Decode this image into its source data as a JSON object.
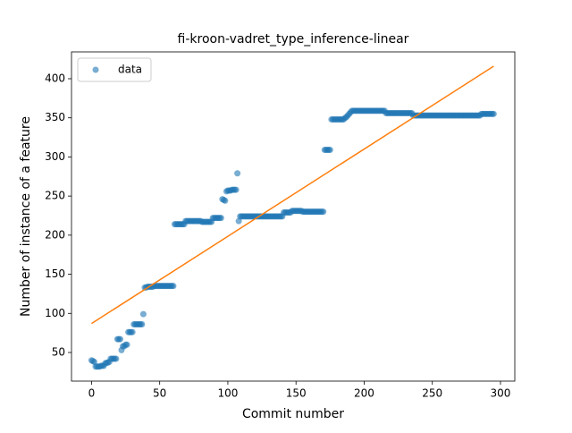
{
  "chart_data": {
    "type": "scatter",
    "title": "fi-kroon-vadret_type_inference-linear",
    "x_label": "Commit number",
    "y_label": "Number of instance of a feature",
    "xlim": [
      -14.7,
      310.5
    ],
    "ylim": [
      13.4,
      434.3
    ],
    "xticks": [
      0,
      50,
      100,
      150,
      200,
      250,
      300
    ],
    "yticks": [
      50,
      100,
      150,
      200,
      250,
      300,
      350,
      400
    ],
    "legend": "upper left",
    "series": [
      {
        "name": "data",
        "color": "#1f77b4",
        "kind": "points",
        "x": [
          0,
          1,
          2,
          3,
          4,
          5,
          6,
          7,
          8,
          9,
          10,
          11,
          12,
          13,
          14,
          15,
          16,
          17,
          18,
          19,
          20,
          21,
          22,
          23,
          24,
          25,
          26,
          27,
          28,
          29,
          30,
          31,
          32,
          33,
          34,
          35,
          36,
          37,
          38,
          39,
          40,
          41,
          42,
          43,
          44,
          45,
          46,
          47,
          48,
          49,
          50,
          51,
          52,
          53,
          54,
          55,
          56,
          57,
          58,
          59,
          60,
          61,
          62,
          63,
          64,
          65,
          66,
          67,
          68,
          69,
          70,
          71,
          72,
          73,
          74,
          75,
          76,
          77,
          78,
          79,
          80,
          81,
          82,
          83,
          84,
          85,
          86,
          87,
          88,
          89,
          90,
          91,
          92,
          93,
          94,
          95,
          96,
          97,
          98,
          99,
          100,
          101,
          102,
          103,
          104,
          105,
          106,
          107,
          108,
          109,
          110,
          111,
          112,
          113,
          114,
          115,
          116,
          117,
          118,
          119,
          120,
          121,
          122,
          123,
          124,
          125,
          126,
          127,
          128,
          129,
          130,
          131,
          132,
          133,
          134,
          135,
          136,
          137,
          138,
          139,
          140,
          141,
          142,
          143,
          144,
          145,
          146,
          147,
          148,
          149,
          150,
          151,
          152,
          153,
          154,
          155,
          156,
          157,
          158,
          159,
          160,
          161,
          162,
          163,
          164,
          165,
          166,
          167,
          168,
          169,
          170,
          171,
          172,
          173,
          174,
          175,
          176,
          177,
          178,
          179,
          180,
          181,
          182,
          183,
          184,
          185,
          186,
          187,
          188,
          189,
          190,
          191,
          192,
          193,
          194,
          195,
          196,
          197,
          198,
          199,
          200,
          201,
          202,
          203,
          204,
          205,
          206,
          207,
          208,
          209,
          210,
          211,
          212,
          213,
          214,
          215,
          216,
          217,
          218,
          219,
          220,
          221,
          222,
          223,
          224,
          225,
          226,
          227,
          228,
          229,
          230,
          231,
          232,
          233,
          234,
          235,
          236,
          237,
          238,
          239,
          240,
          241,
          242,
          243,
          244,
          245,
          246,
          247,
          248,
          249,
          250,
          251,
          252,
          253,
          254,
          255,
          256,
          257,
          258,
          259,
          260,
          261,
          262,
          263,
          264,
          265,
          266,
          267,
          268,
          269,
          270,
          271,
          272,
          273,
          274,
          275,
          276,
          277,
          278,
          279,
          280,
          281,
          282,
          283,
          284,
          285,
          286,
          287,
          288,
          289,
          290,
          291,
          292,
          293,
          294,
          295
        ],
        "values": [
          40,
          39,
          38,
          32,
          32,
          32,
          32,
          33,
          33,
          33,
          36,
          37,
          37,
          38,
          42,
          42,
          42,
          42,
          42,
          67,
          67,
          67,
          53,
          58,
          58,
          60,
          60,
          76,
          76,
          76,
          76,
          86,
          86,
          86,
          86,
          86,
          86,
          86,
          99,
          133,
          133,
          134,
          134,
          134,
          134,
          134,
          135,
          135,
          135,
          135,
          135,
          135,
          135,
          135,
          135,
          135,
          135,
          135,
          135,
          135,
          135,
          214,
          214,
          214,
          214,
          214,
          214,
          214,
          214,
          218,
          218,
          218,
          218,
          218,
          218,
          218,
          218,
          218,
          218,
          218,
          218,
          217,
          217,
          217,
          217,
          217,
          217,
          217,
          217,
          222,
          222,
          222,
          222,
          222,
          222,
          222,
          246,
          245,
          244,
          256,
          257,
          257,
          257,
          258,
          258,
          258,
          258,
          279,
          218,
          224,
          224,
          224,
          224,
          224,
          224,
          224,
          224,
          224,
          224,
          224,
          224,
          224,
          224,
          224,
          224,
          224,
          224,
          224,
          224,
          224,
          224,
          224,
          224,
          224,
          224,
          224,
          224,
          224,
          224,
          224,
          224,
          229,
          229,
          229,
          229,
          229,
          229,
          231,
          231,
          231,
          231,
          231,
          231,
          231,
          231,
          230,
          230,
          230,
          230,
          230,
          230,
          230,
          230,
          230,
          230,
          230,
          230,
          230,
          230,
          230,
          230,
          309,
          309,
          309,
          309,
          309,
          348,
          348,
          348,
          348,
          348,
          348,
          348,
          348,
          348,
          348,
          350,
          351,
          353,
          355,
          357,
          359,
          359,
          359,
          359,
          359,
          359,
          359,
          359,
          359,
          359,
          359,
          359,
          359,
          359,
          359,
          359,
          359,
          359,
          359,
          359,
          359,
          359,
          359,
          359,
          359,
          356,
          356,
          356,
          356,
          356,
          356,
          356,
          356,
          356,
          356,
          356,
          356,
          356,
          356,
          356,
          356,
          356,
          356,
          356,
          356,
          353,
          353,
          353,
          353,
          353,
          353,
          353,
          353,
          353,
          353,
          353,
          353,
          353,
          353,
          353,
          353,
          353,
          353,
          353,
          353,
          353,
          353,
          353,
          353,
          353,
          353,
          353,
          353,
          353,
          353,
          353,
          353,
          353,
          353,
          353,
          353,
          353,
          353,
          353,
          353,
          353,
          353,
          353,
          353,
          353,
          353,
          353,
          353,
          353,
          353,
          355,
          355,
          355,
          355,
          355,
          355,
          355,
          355,
          355,
          355
        ]
      },
      {
        "color": "#ff7f0e",
        "kind": "line",
        "x": [
          0,
          295
        ],
        "values": [
          87,
          416
        ]
      }
    ]
  }
}
